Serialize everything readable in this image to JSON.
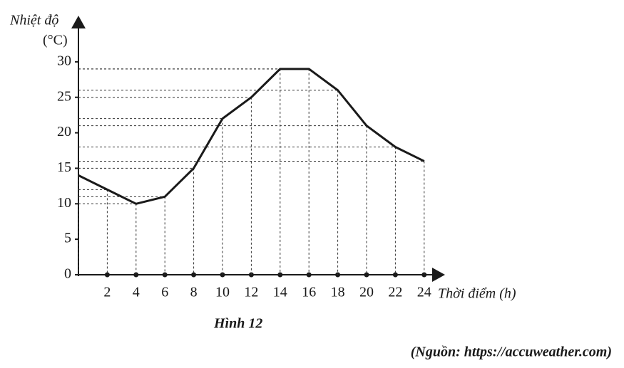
{
  "chart_data": {
    "type": "line",
    "y_label": "Nhiệt độ",
    "y_unit": "(°C)",
    "x_label": "Thời điểm (h)",
    "caption": "Hình 12",
    "source": "(Nguồn: https://accuweather.com)",
    "x": [
      0,
      2,
      4,
      6,
      8,
      10,
      12,
      14,
      16,
      18,
      20,
      22,
      24
    ],
    "values": [
      14,
      12,
      10,
      11,
      15,
      22,
      25,
      29,
      29,
      26,
      21,
      18,
      16
    ],
    "color": "#1a1a1a",
    "xlim": [
      0,
      25
    ],
    "xticks": [
      2,
      4,
      6,
      8,
      10,
      12,
      14,
      16,
      18,
      20,
      22,
      24
    ],
    "ylim": [
      0,
      35
    ],
    "yticks": [
      0,
      5,
      10,
      15,
      20,
      25,
      30
    ],
    "dashed_guides": true
  }
}
